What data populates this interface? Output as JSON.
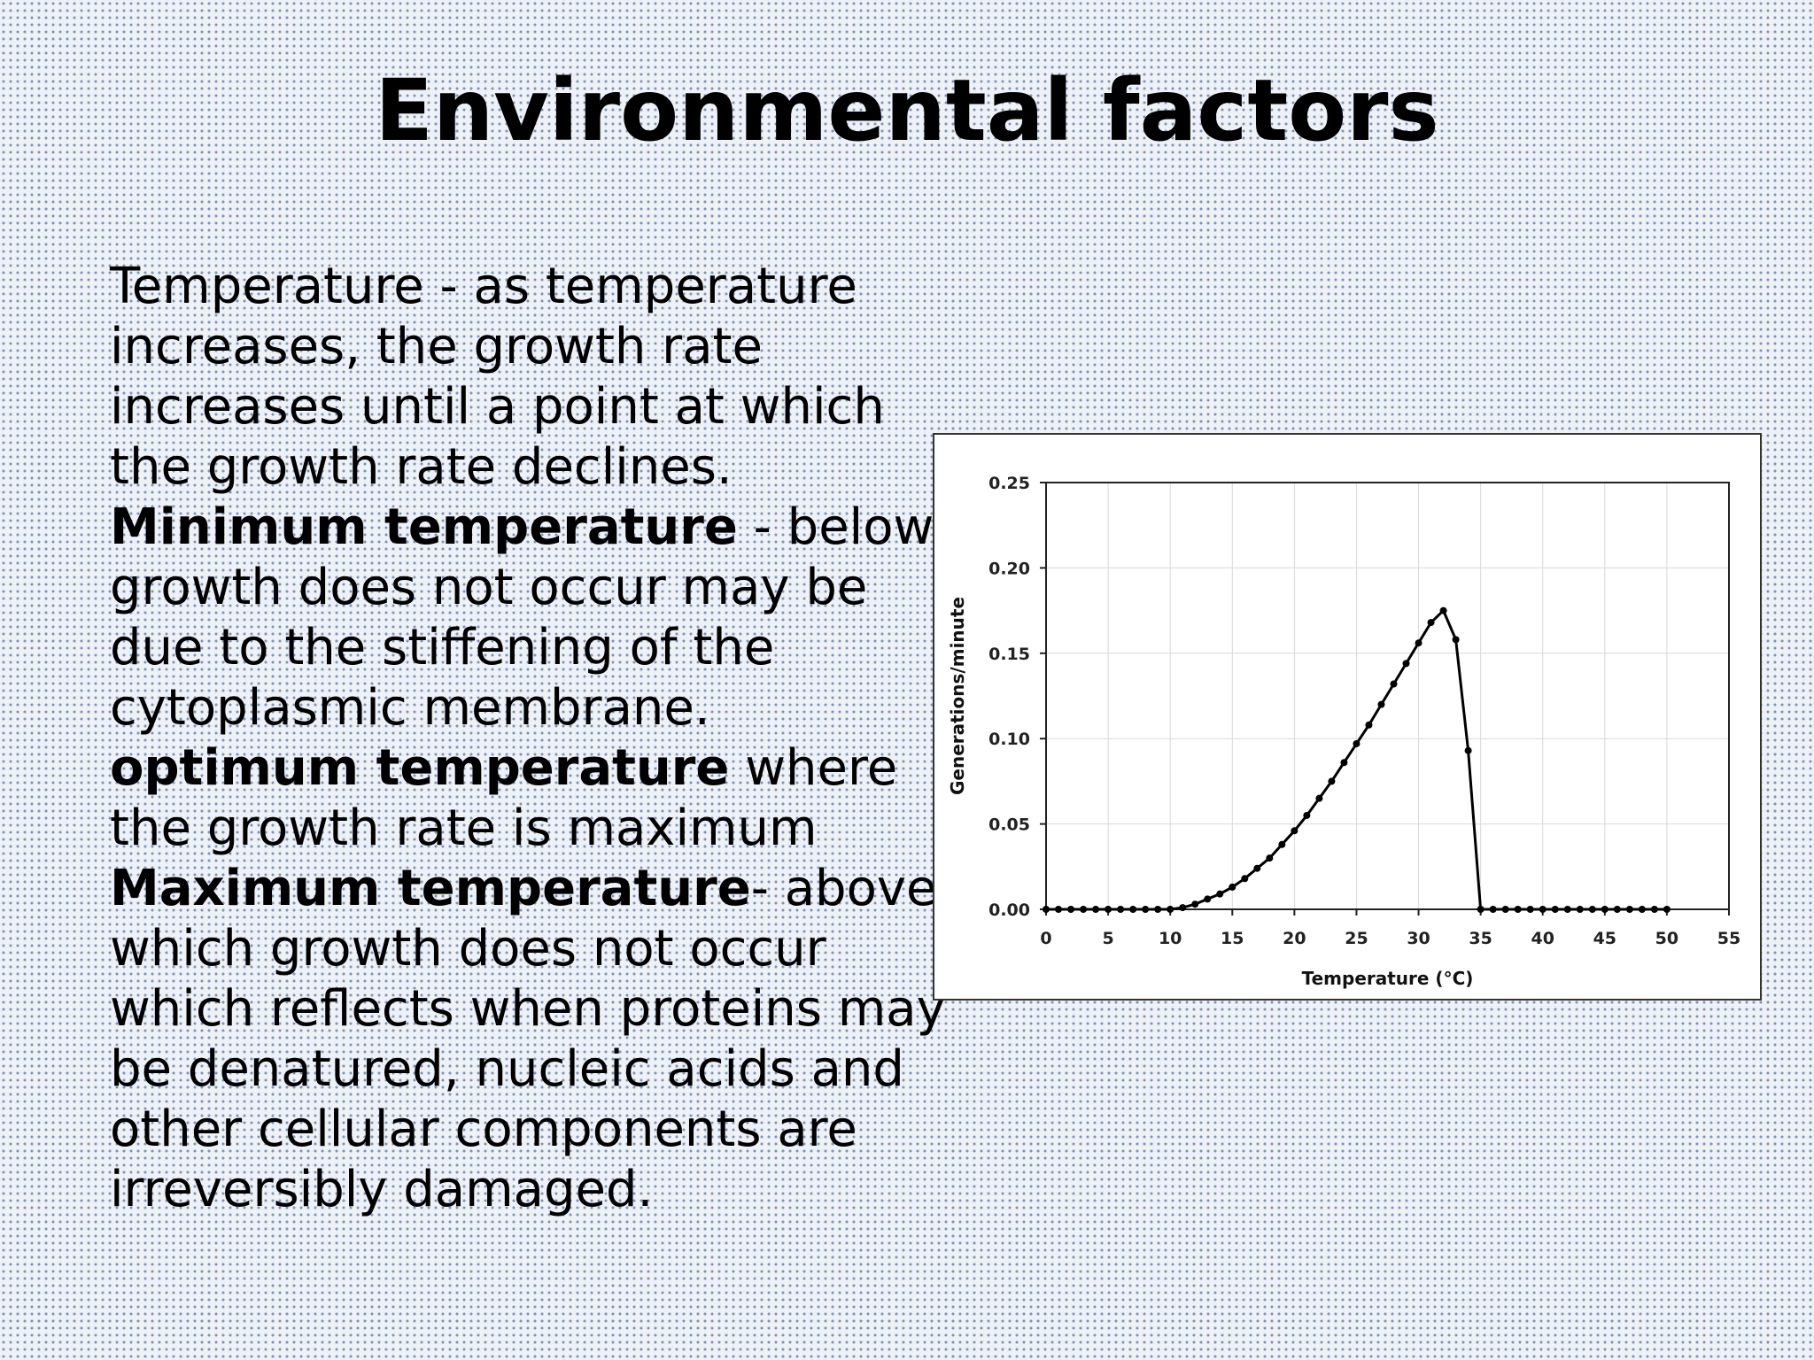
{
  "title": "Environmental factors",
  "paragraphs": [
    {
      "lead": "",
      "text": "Temperature - as temperature increases, the growth rate increases until a point at which the growth rate declines."
    },
    {
      "lead": "Minimum temperature",
      "text": " - below growth does not occur may be due to the stiffening of the cytoplasmic membrane."
    },
    {
      "lead": "optimum temperature",
      "text": " where the growth rate is maximum"
    },
    {
      "lead": "Maximum temperature",
      "text": "- above which growth does not occur which reflects when proteins may be denatured, nucleic acids and other cellular components are irreversibly damaged."
    }
  ],
  "chart_data": {
    "type": "line",
    "title": "",
    "xlabel": "Temperature (°C)",
    "ylabel": "Generations/minute",
    "xlim": [
      0,
      55
    ],
    "ylim": [
      0,
      0.25
    ],
    "xticks": [
      0,
      5,
      10,
      15,
      20,
      25,
      30,
      35,
      40,
      45,
      50,
      55
    ],
    "yticks": [
      "0.00",
      "0.05",
      "0.10",
      "0.15",
      "0.20",
      "0.25"
    ],
    "grid": true,
    "legend": "none",
    "series": [
      {
        "name": "",
        "x": [
          0,
          1,
          2,
          3,
          4,
          5,
          6,
          7,
          8,
          9,
          10,
          11,
          12,
          13,
          14,
          15,
          16,
          17,
          18,
          19,
          20,
          21,
          22,
          23,
          24,
          25,
          26,
          27,
          28,
          29,
          30,
          31,
          32,
          33,
          34,
          35,
          36,
          37,
          38,
          39,
          40,
          41,
          42,
          43,
          44,
          45,
          46,
          47,
          48,
          49,
          50
        ],
        "y": [
          0,
          0,
          0,
          0,
          0,
          0,
          0,
          0,
          0,
          0,
          0,
          0.001,
          0.003,
          0.006,
          0.009,
          0.013,
          0.018,
          0.024,
          0.03,
          0.038,
          0.046,
          0.055,
          0.065,
          0.075,
          0.086,
          0.097,
          0.108,
          0.12,
          0.132,
          0.144,
          0.156,
          0.168,
          0.175,
          0.158,
          0.093,
          0,
          0,
          0,
          0,
          0,
          0,
          0,
          0,
          0,
          0,
          0,
          0,
          0,
          0,
          0,
          0
        ]
      }
    ]
  },
  "colors": {
    "line": "#000000",
    "grid": "#d8d8d8",
    "frame": "#333333"
  }
}
